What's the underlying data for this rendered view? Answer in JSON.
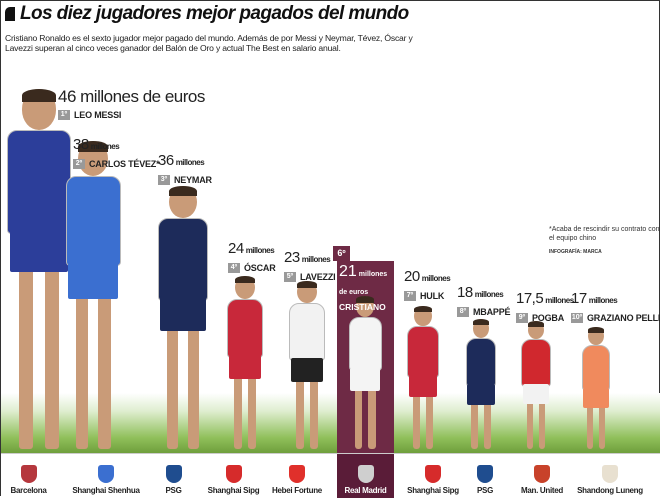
{
  "title": "Los diez jugadores mejor pagados del mundo",
  "intro": "Cristiano Ronaldo es el sexto jugador mejor pagado del mundo. Además de por Messi y Neymar, Tévez, Óscar y Lavezzi superan al cinco veces ganador del Balón de Oro y actual The Best en salario anual.",
  "note": "*Acaba de rescindir su contrato con el equipo chino",
  "credit": "INFOGRAFÍA: MARCA",
  "colors": {
    "highlight": "#6e2a45",
    "rank_badge": "#999999"
  },
  "players": [
    {
      "rank": "1º",
      "amount": "46",
      "unit": "millones de euros",
      "name": "LEO MESSI",
      "club": "Barcelona",
      "jersey": "#2c3e9a",
      "shorts": "#2c3e9a",
      "crest": "#b5373d"
    },
    {
      "rank": "2º",
      "amount": "38",
      "unit": "millones",
      "name": "CARLOS TÉVEZ*",
      "club": "Shanghai Shenhua",
      "jersey": "#3b6fd0",
      "shorts": "#3b6fd0",
      "crest": "#3b6fd0"
    },
    {
      "rank": "3º",
      "amount": "36",
      "unit": "millones",
      "name": "NEYMAR",
      "club": "PSG",
      "jersey": "#1d2b5a",
      "shorts": "#1d2b5a",
      "crest": "#1f4d8f"
    },
    {
      "rank": "4º",
      "amount": "24",
      "unit": "millones",
      "name": "ÓSCAR",
      "club": "Shanghai Sipg",
      "jersey": "#c8283a",
      "shorts": "#c8283a",
      "crest": "#d62b2b"
    },
    {
      "rank": "5º",
      "amount": "23",
      "unit": "millones",
      "name": "LAVEZZI",
      "club": "Hebei Fortune",
      "jersey": "#f2f2f2",
      "shorts": "#222",
      "crest": "#e0302b"
    },
    {
      "rank": "6º",
      "amount": "21",
      "unit": "millones de euros",
      "name": "CRISTIANO",
      "club": "Real Madrid",
      "jersey": "#f4f4f4",
      "shorts": "#f4f4f4",
      "crest": "#cfcfcf"
    },
    {
      "rank": "7º",
      "amount": "20",
      "unit": "millones",
      "name": "HULK",
      "club": "Shanghai Sipg",
      "jersey": "#c8283a",
      "shorts": "#c8283a",
      "crest": "#d62b2b"
    },
    {
      "rank": "8º",
      "amount": "18",
      "unit": "millones",
      "name": "MBAPPÉ",
      "club": "PSG",
      "jersey": "#1d2b5a",
      "shorts": "#1d2b5a",
      "crest": "#1f4d8f"
    },
    {
      "rank": "9º",
      "amount": "17,5",
      "unit": "millones",
      "name": "POGBA",
      "club": "Man. United",
      "jersey": "#d0282e",
      "shorts": "#f2f2f2",
      "crest": "#c8422a"
    },
    {
      "rank": "10º",
      "amount": "17",
      "unit": "millones",
      "name": "GRAZIANO PELLÈ",
      "club": "Shandong Luneng",
      "jersey": "#f08a5d",
      "shorts": "#f08a5d",
      "crest": "#e8e0d0"
    }
  ]
}
